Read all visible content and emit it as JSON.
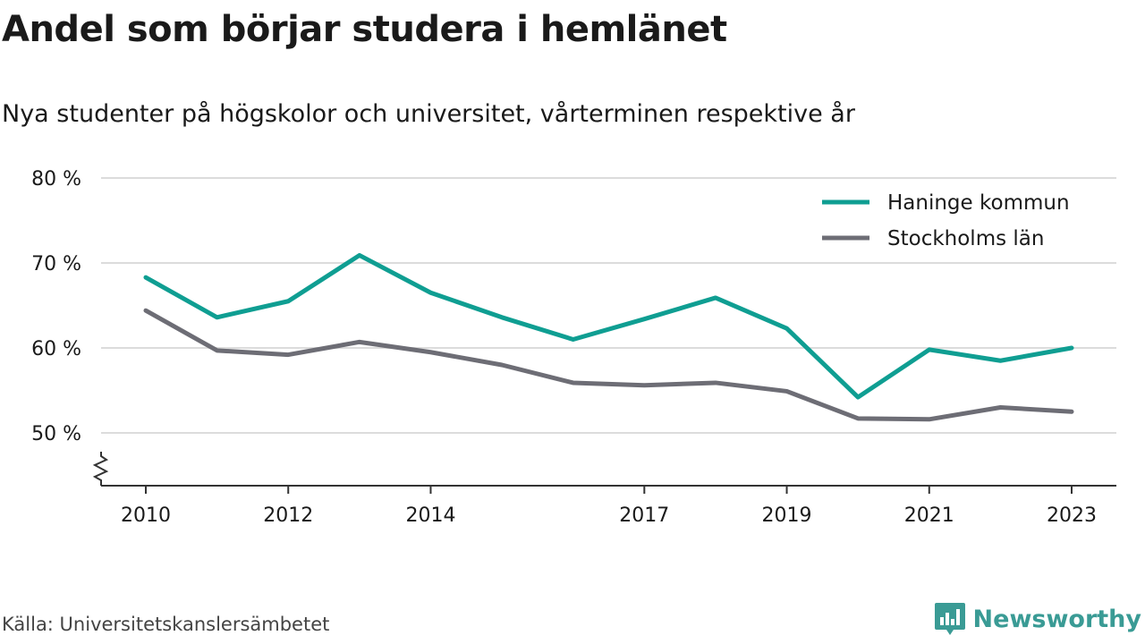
{
  "header": {
    "title": "Andel som börjar studera i hemlänet",
    "subtitle": "Nya studenter på högskolor och universitet, vårterminen respektive år"
  },
  "footer": {
    "source": "Källa: Universitetskanslersämbetet",
    "brand_name": "Newsworthy",
    "brand_color": "#3a9b95"
  },
  "chart_data": {
    "type": "line",
    "title": "Andel som börjar studera i hemlänet",
    "subtitle": "Nya studenter på högskolor och universitet, vårterminen respektive år",
    "x": [
      2010,
      2011,
      2012,
      2013,
      2014,
      2015,
      2016,
      2017,
      2018,
      2019,
      2020,
      2021,
      2022,
      2023
    ],
    "x_tick_labels": [
      "2010",
      "2012",
      "2014",
      "2017",
      "2019",
      "2021",
      "2023"
    ],
    "y_ticks": [
      50,
      60,
      70,
      80
    ],
    "y_tick_labels": [
      "50 %",
      "60 %",
      "70 %",
      "80 %"
    ],
    "ylim": [
      44,
      80
    ],
    "y_axis_break": true,
    "grid": true,
    "legend_position": "top-right",
    "series": [
      {
        "name": "Haninge kommun",
        "color": "#0f9e92",
        "values": [
          68.3,
          63.6,
          65.5,
          70.9,
          66.5,
          63.6,
          61.0,
          63.4,
          65.9,
          62.3,
          54.2,
          59.8,
          58.5,
          60.0
        ]
      },
      {
        "name": "Stockholms län",
        "color": "#6d6d75",
        "values": [
          64.4,
          59.7,
          59.2,
          60.7,
          59.5,
          58.0,
          55.9,
          55.6,
          55.9,
          54.9,
          51.7,
          51.6,
          53.0,
          52.5
        ]
      }
    ]
  }
}
